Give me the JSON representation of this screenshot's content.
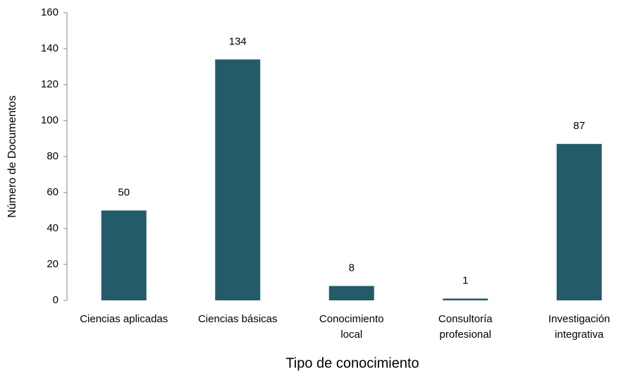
{
  "chart_data": {
    "type": "bar",
    "xlabel": "Tipo de conocimiento",
    "ylabel": "Número de Documentos",
    "categories": [
      "Ciencias aplicadas",
      "Ciencias básicas",
      "Conocimiento\nlocal",
      "Consultoría\nprofesional",
      "Investigación\nintegrativa"
    ],
    "values": [
      50,
      134,
      8,
      1,
      87
    ],
    "color": "#245b69",
    "ylim": [
      0,
      160
    ],
    "yticks": [
      0,
      20,
      40,
      60,
      80,
      100,
      120,
      140,
      160
    ],
    "grid": false
  }
}
